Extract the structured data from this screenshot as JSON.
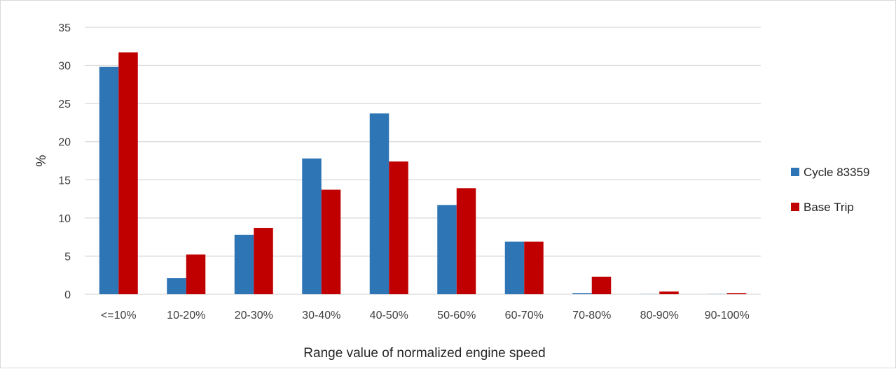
{
  "chart_data": {
    "type": "bar",
    "title": "",
    "xlabel": "Range value of normalized engine speed",
    "ylabel": "%",
    "ylim": [
      0,
      35
    ],
    "yticks": [
      0,
      5,
      10,
      15,
      20,
      25,
      30,
      35
    ],
    "grid": true,
    "legend": "right",
    "categories": [
      "<=10%",
      "10-20%",
      "20-30%",
      "30-40%",
      "40-50%",
      "50-60%",
      "60-70%",
      "70-80%",
      "80-90%",
      "90-100%"
    ],
    "series": [
      {
        "name": "Cycle 83359",
        "color": "#2e75b6",
        "values": [
          29.8,
          2.1,
          7.8,
          17.8,
          23.7,
          11.7,
          6.9,
          0.15,
          0.02,
          0.02
        ]
      },
      {
        "name": "Base Trip",
        "color": "#c00000",
        "values": [
          31.7,
          5.2,
          8.7,
          13.7,
          17.4,
          13.9,
          6.9,
          2.3,
          0.35,
          0.15
        ]
      }
    ]
  }
}
